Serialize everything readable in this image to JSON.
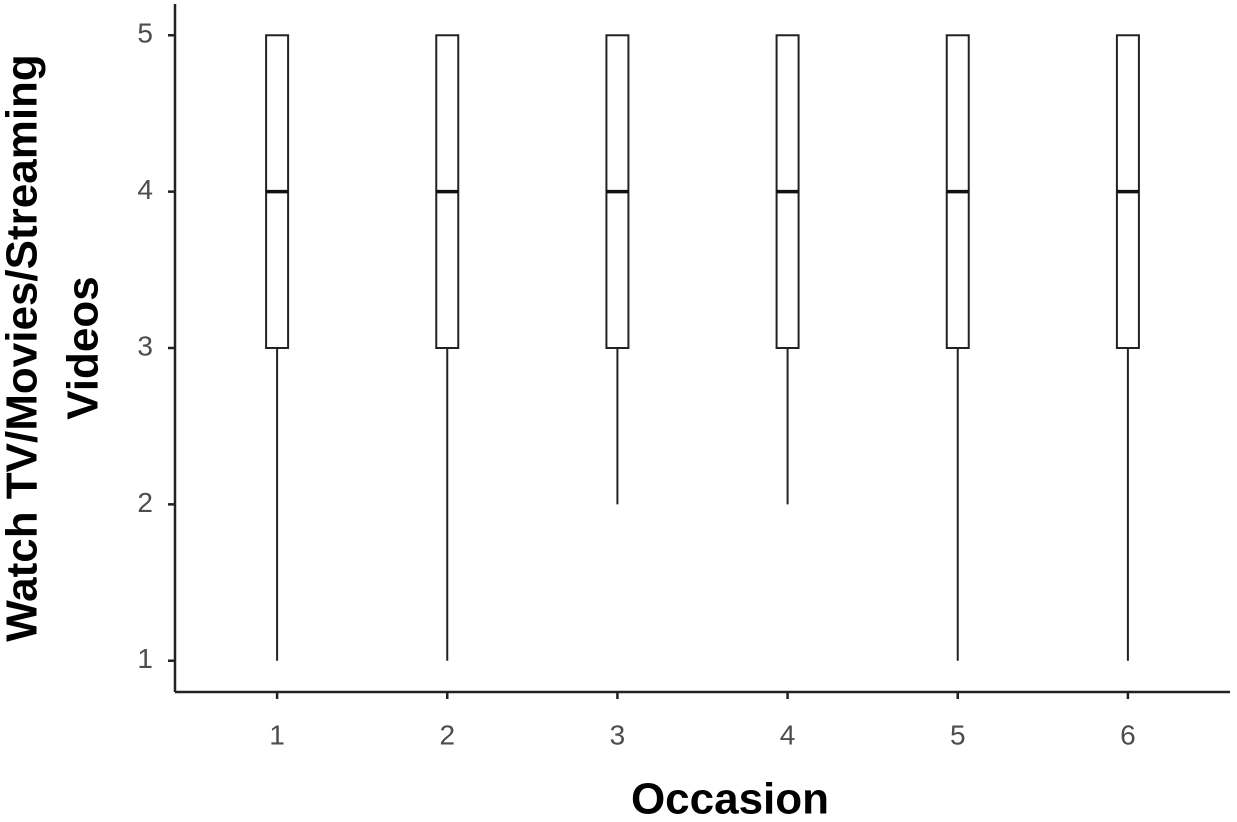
{
  "chart_data": {
    "type": "box",
    "xlabel": "Occasion",
    "ylabel": [
      "Watch TV/Movies/Streaming",
      "Videos"
    ],
    "categories": [
      "1",
      "2",
      "3",
      "4",
      "5",
      "6"
    ],
    "min": [
      1,
      1,
      2,
      2,
      1,
      1
    ],
    "q1": [
      3,
      3,
      3,
      3,
      3,
      3
    ],
    "median": [
      4,
      4,
      4,
      4,
      4,
      4
    ],
    "q3": [
      5,
      5,
      5,
      5,
      5,
      5
    ],
    "max": [
      5,
      5,
      5,
      5,
      5,
      5
    ],
    "ylim": [
      0.8,
      5.2
    ],
    "yticks": [
      1,
      2,
      3,
      4,
      5
    ]
  }
}
